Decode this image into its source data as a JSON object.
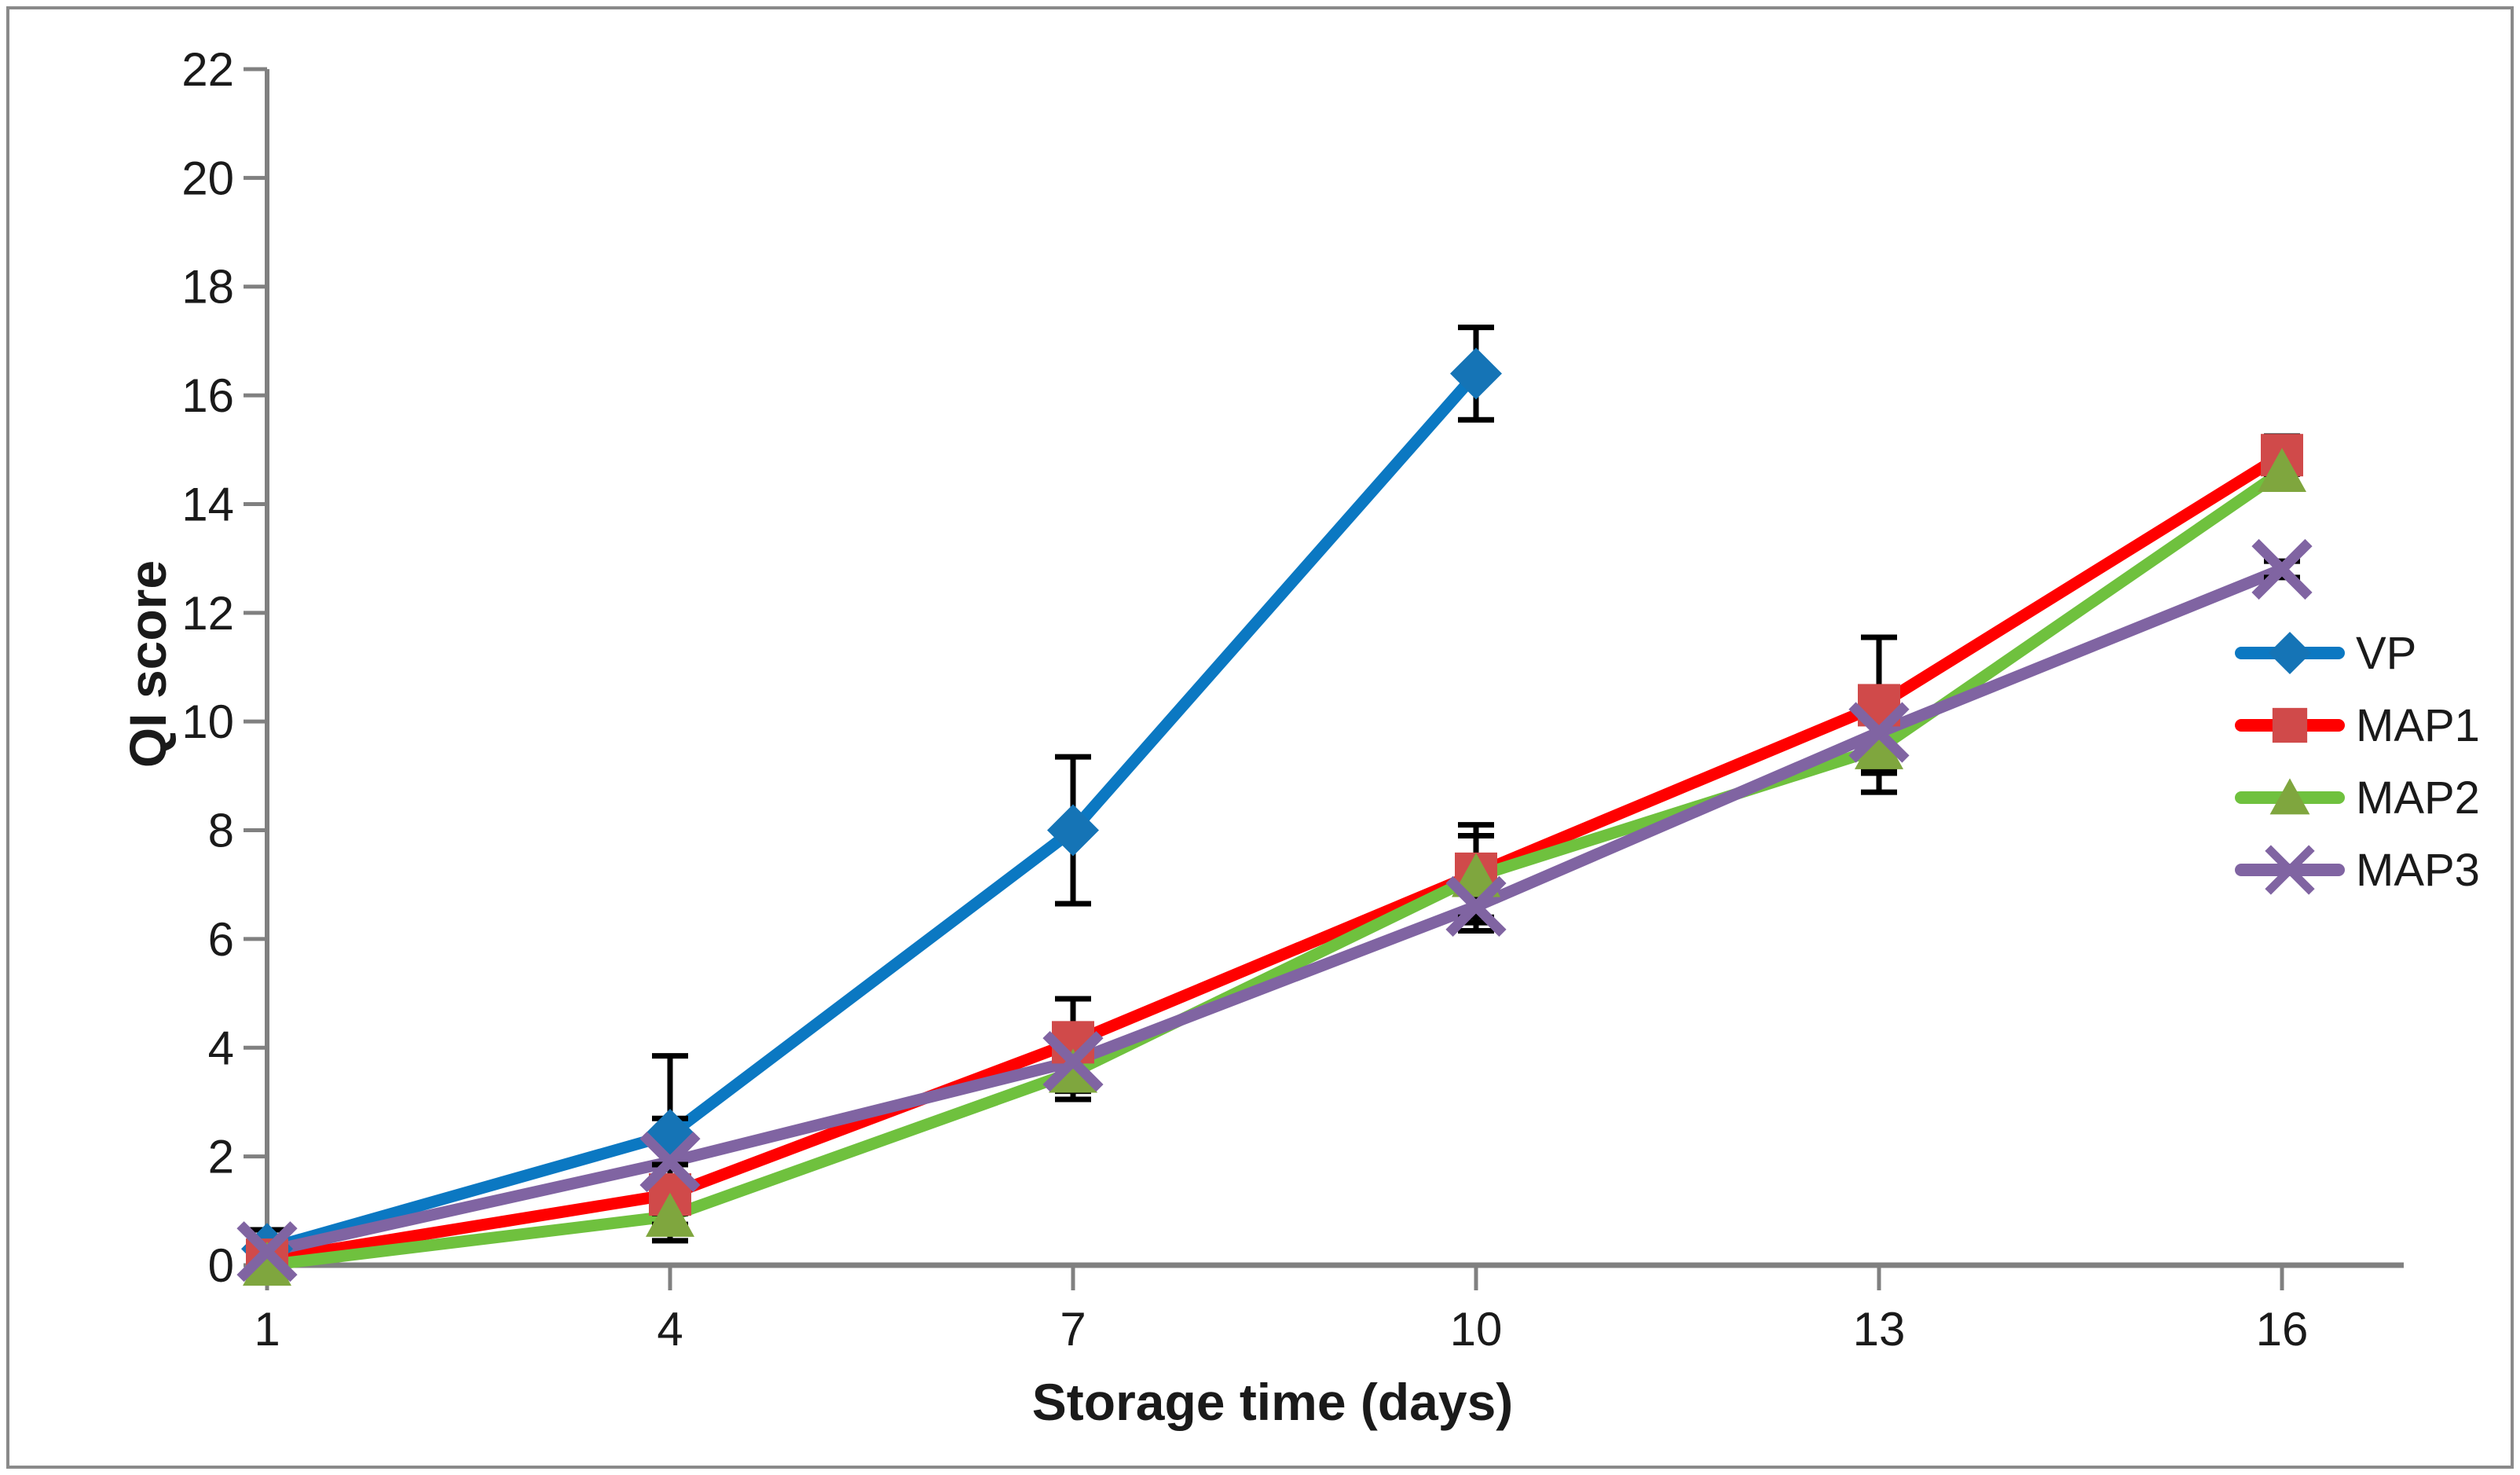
{
  "figure": {
    "background": "#FFFFFF",
    "border_color": "#8A8A8A"
  },
  "chart_data": {
    "type": "line",
    "title": "",
    "xlabel": "Storage time (days)",
    "ylabel": "QI score",
    "xticks": [
      1,
      4,
      7,
      10,
      13,
      16
    ],
    "xlim": [
      1,
      16
    ],
    "ylim": [
      0,
      22
    ],
    "ytick_step": 2,
    "grid": false,
    "legend_position": "right",
    "axis_color": "#808080",
    "text_color": "#1A1A1A",
    "error_bar_color": "#000000",
    "series": [
      {
        "name": "VP",
        "color": "#0B78C2",
        "marker": "diamond",
        "marker_color": "#1574B6",
        "x": [
          1,
          4,
          7,
          10
        ],
        "values": [
          0.3,
          2.4,
          8.0,
          16.4
        ],
        "errors": [
          0.35,
          1.45,
          1.35,
          0.85
        ]
      },
      {
        "name": "MAP1",
        "color": "#FF0000",
        "marker": "square",
        "marker_color": "#D04A4A",
        "x": [
          1,
          4,
          7,
          10,
          13,
          16
        ],
        "values": [
          0.1,
          1.3,
          4.1,
          7.2,
          10.3,
          14.9
        ],
        "errors": [
          0.15,
          0.55,
          0.8,
          0.9,
          1.25,
          0.35
        ]
      },
      {
        "name": "MAP2",
        "color": "#6FC13E",
        "marker": "triangle",
        "marker_color": "#7FA63E",
        "x": [
          1,
          4,
          7,
          10,
          13,
          16
        ],
        "values": [
          0.0,
          0.9,
          3.55,
          7.15,
          9.5,
          14.6
        ],
        "errors": [
          0.1,
          0.45,
          0.5,
          0.75,
          0.8,
          0.3
        ]
      },
      {
        "name": "MAP3",
        "color": "#8064A2",
        "marker": "x",
        "marker_color": "#8064A2",
        "x": [
          1,
          4,
          7,
          10,
          13,
          16
        ],
        "values": [
          0.25,
          1.9,
          3.75,
          6.6,
          9.8,
          12.8
        ],
        "errors": [
          0.15,
          0.8,
          0.55,
          0.45,
          0.7,
          0.15
        ]
      }
    ]
  }
}
